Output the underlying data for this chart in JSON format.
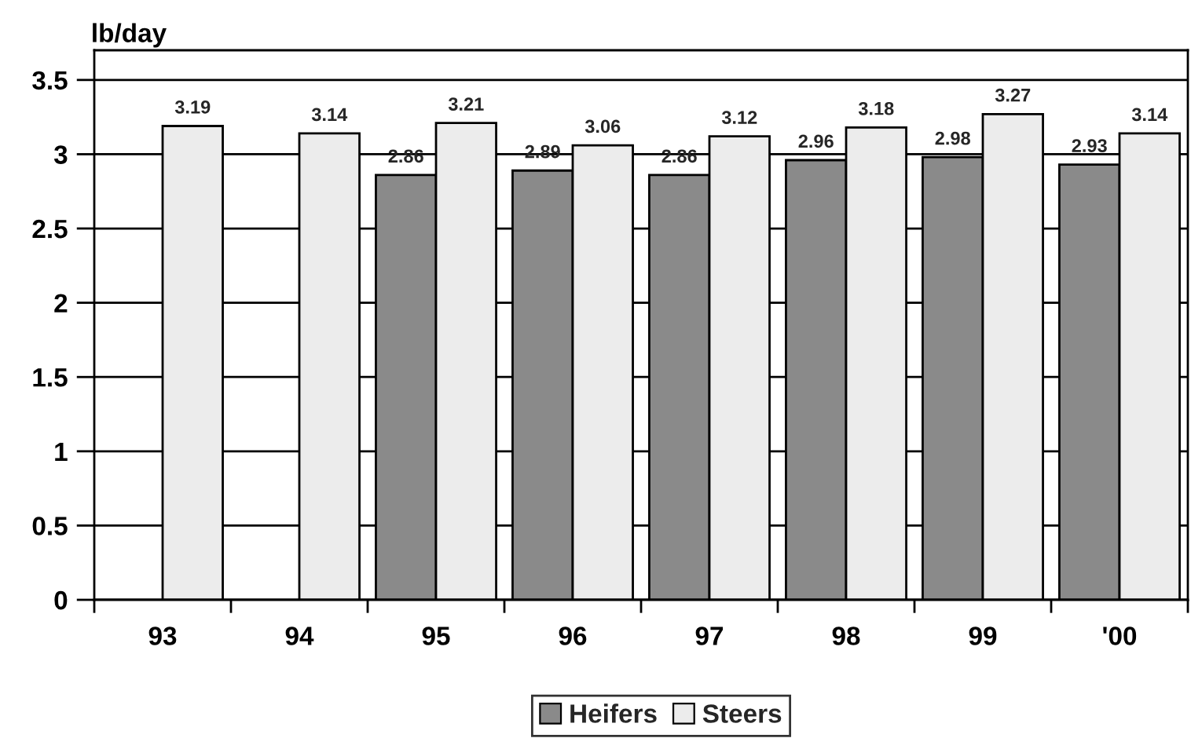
{
  "chart_data": {
    "type": "bar",
    "ylabel": "lb/day",
    "categories": [
      "93",
      "94",
      "95",
      "96",
      "97",
      "98",
      "99",
      "'00"
    ],
    "series": [
      {
        "name": "Heifers",
        "color": "#8a8a8a",
        "values": [
          null,
          null,
          2.86,
          2.89,
          2.86,
          2.96,
          2.98,
          2.93
        ]
      },
      {
        "name": "Steers",
        "color": "#ececec",
        "values": [
          3.19,
          3.14,
          3.21,
          3.06,
          3.12,
          3.18,
          3.27,
          3.14
        ]
      }
    ],
    "ylim": [
      0,
      3.7
    ],
    "yticks": [
      0,
      0.5,
      1,
      1.5,
      2,
      2.5,
      3,
      3.5
    ],
    "grid": "y",
    "legend": "bottom",
    "data_labels": true
  }
}
